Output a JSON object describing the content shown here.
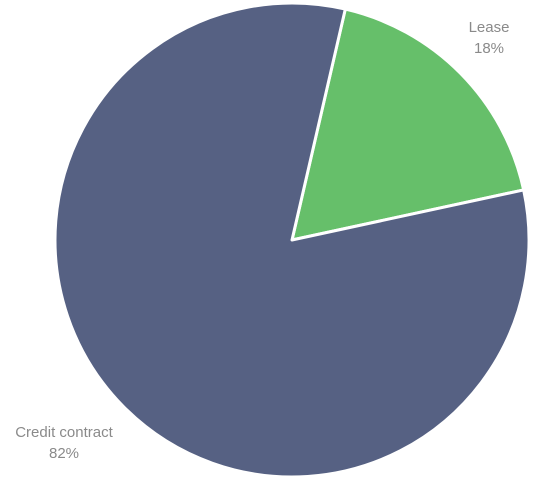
{
  "chart_data": {
    "type": "pie",
    "title": "",
    "legend": "none",
    "slices": [
      {
        "label": "Lease",
        "value": 18,
        "value_label": "18%",
        "color": "#66bf6a"
      },
      {
        "label": "Credit contract",
        "value": 82,
        "value_label": "82%",
        "color": "#566183"
      }
    ]
  }
}
